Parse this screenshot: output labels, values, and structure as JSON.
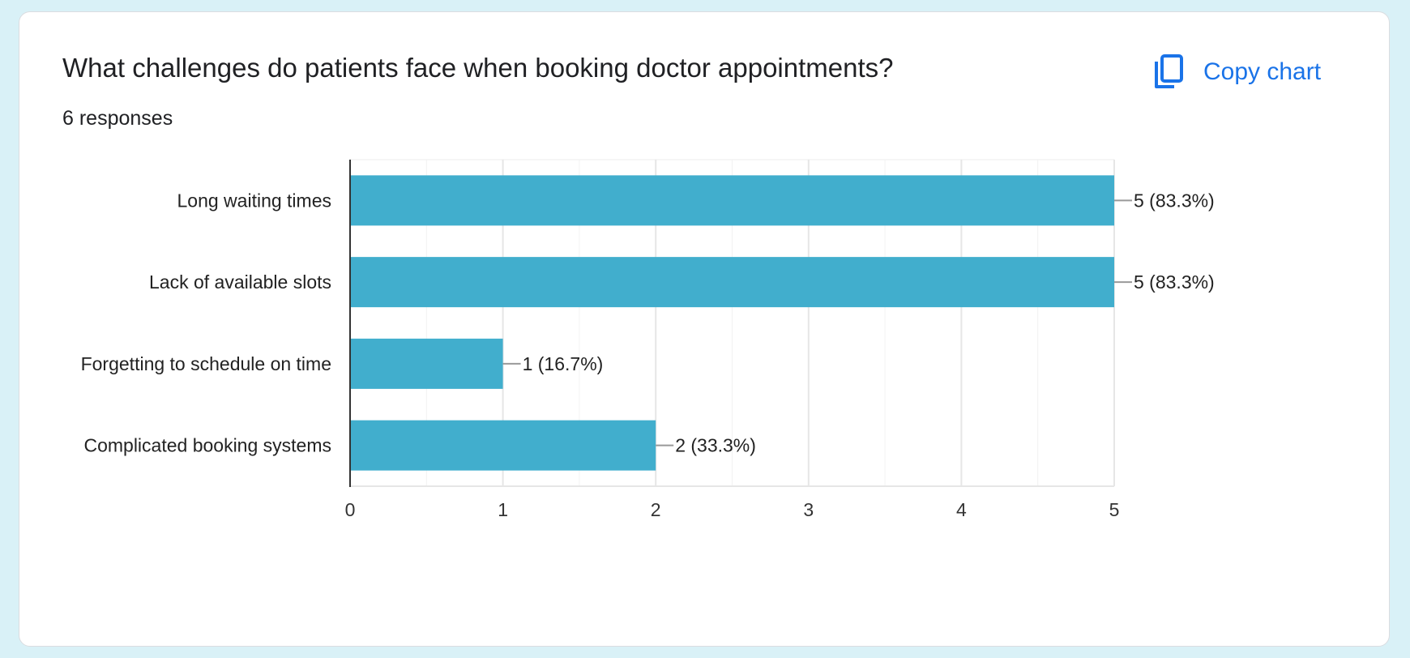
{
  "header": {
    "title": "What challenges do patients face when booking doctor appointments?",
    "responses": "6 responses"
  },
  "actions": {
    "copy_label": "Copy chart",
    "copy_icon": "copy-icon"
  },
  "colors": {
    "bar": "#41aecd",
    "accent": "#1a73e8",
    "background": "#d9f1f7"
  },
  "chart_data": {
    "type": "bar",
    "orientation": "horizontal",
    "categories": [
      "Long waiting times",
      "Lack of available slots",
      "Forgetting to schedule on time",
      "Complicated booking systems"
    ],
    "values": [
      5,
      5,
      1,
      2
    ],
    "data_labels": [
      "5 (83.3%)",
      "5 (83.3%)",
      "1 (16.7%)",
      "2 (33.3%)"
    ],
    "xlim": [
      0,
      5
    ],
    "x_ticks": [
      "0",
      "1",
      "2",
      "3",
      "4",
      "5"
    ],
    "grid": true,
    "legend": "none"
  }
}
